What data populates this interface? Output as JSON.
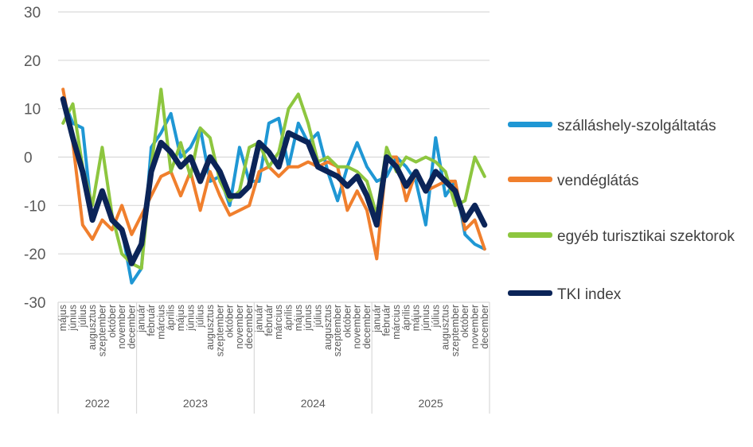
{
  "chart_data": {
    "type": "line",
    "ylim": [
      -30,
      30
    ],
    "yticks": [
      -30,
      -20,
      -10,
      0,
      10,
      20,
      30
    ],
    "grid": true,
    "legend_position": "right",
    "x": [
      "május",
      "június",
      "július",
      "augusztus",
      "szeptember",
      "október",
      "november",
      "december",
      "január",
      "február",
      "március",
      "április",
      "május",
      "június",
      "július",
      "augusztus",
      "szeptember",
      "október",
      "november",
      "december",
      "január",
      "február",
      "március",
      "április",
      "május",
      "június",
      "július",
      "augusztus",
      "szeptember",
      "október",
      "november",
      "december",
      "január",
      "február",
      "március",
      "április",
      "május",
      "június",
      "július",
      "augusztus",
      "szeptember",
      "október",
      "november",
      "december"
    ],
    "years": [
      {
        "label": "2022",
        "start": 0,
        "end": 7
      },
      {
        "label": "2023",
        "start": 8,
        "end": 19
      },
      {
        "label": "2024",
        "start": 20,
        "end": 31
      },
      {
        "label": "2025",
        "start": 32,
        "end": 43
      }
    ],
    "series": [
      {
        "name": "szálláshely-szolgáltatás",
        "color": "#1f97d4",
        "width": 4,
        "values": [
          12,
          7,
          6,
          -13,
          -7,
          -13,
          -15,
          -26,
          -23,
          2,
          5,
          9,
          0,
          2,
          6,
          -5,
          -4,
          -10,
          2,
          -5,
          -5,
          7,
          8,
          -2,
          7,
          3,
          5,
          -3,
          -9,
          -2,
          3,
          -2,
          -5,
          -4,
          0,
          -2,
          -5,
          -14,
          4,
          -8,
          -5,
          -16,
          -18,
          -19
        ]
      },
      {
        "name": "vendéglátás",
        "color": "#f07f2d",
        "width": 4,
        "values": [
          14,
          3,
          -14,
          -17,
          -13,
          -15,
          -10,
          -16,
          -12,
          -8,
          -4,
          -3,
          -8,
          -3,
          -11,
          -3,
          -8,
          -12,
          -11,
          -10,
          -3,
          -2,
          -4,
          -2,
          -2,
          -1,
          -2,
          -1,
          -2,
          -11,
          -7,
          -11,
          -21,
          0,
          0,
          -9,
          -3,
          -7,
          -6,
          -5,
          -5,
          -15,
          -13,
          -19
        ]
      },
      {
        "name": "egyéb turisztikai szektorok",
        "color": "#8dc63f",
        "width": 4,
        "values": [
          7,
          11,
          -2,
          -10,
          2,
          -12,
          -20,
          -22,
          -23,
          -2,
          14,
          -3,
          3,
          -4,
          6,
          4,
          -5,
          -9,
          -7,
          2,
          3,
          -2,
          1,
          10,
          13,
          7,
          -1,
          0,
          -2,
          -2,
          -3,
          -5,
          -12,
          2,
          -3,
          0,
          -1,
          0,
          -1,
          -3,
          -10,
          -9,
          0,
          -4
        ]
      },
      {
        "name": "TKI index",
        "color": "#0b2458",
        "width": 7,
        "values": [
          12,
          4,
          -3,
          -13,
          -7,
          -13,
          -15,
          -22,
          -18,
          -3,
          3,
          1,
          -2,
          0,
          -5,
          0,
          -3,
          -8,
          -8,
          -6,
          3,
          1,
          -2,
          5,
          4,
          3,
          -2,
          -3,
          -4,
          -6,
          -4,
          -8,
          -14,
          0,
          -2,
          -6,
          -3,
          -7,
          -3,
          -5,
          -7,
          -13,
          -10,
          -14
        ]
      }
    ]
  }
}
